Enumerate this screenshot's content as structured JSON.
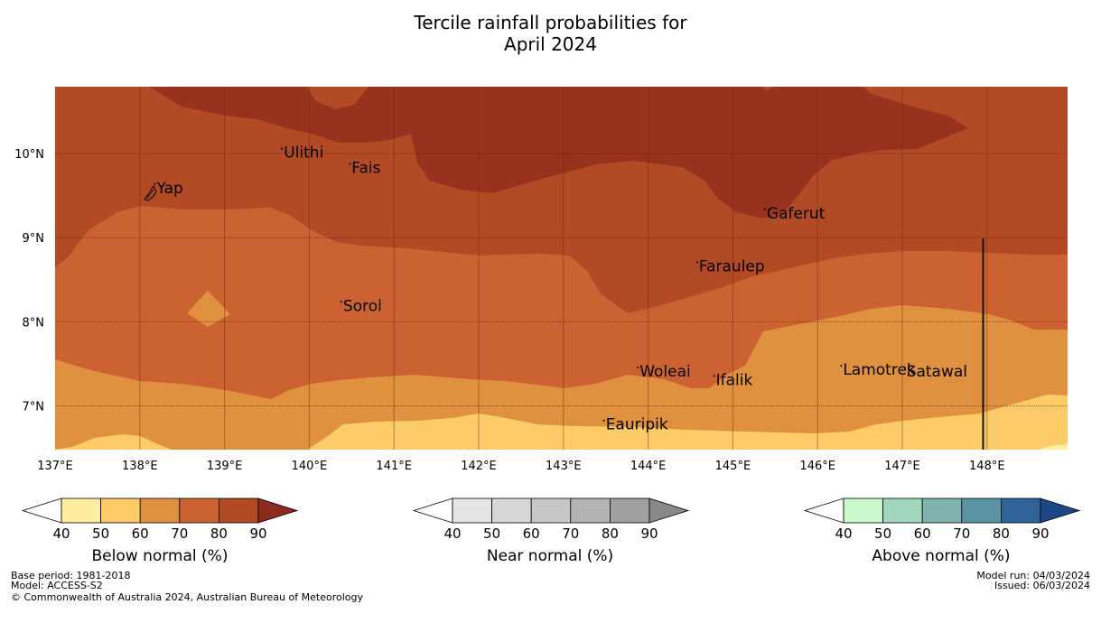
{
  "title": {
    "line1": "Tercile rainfall probabilities for",
    "line2": "April 2024"
  },
  "map": {
    "lon_labels": [
      "137°E",
      "138°E",
      "139°E",
      "140°E",
      "141°E",
      "142°E",
      "143°E",
      "144°E",
      "145°E",
      "146°E",
      "147°E",
      "148°E"
    ],
    "lat_labels": [
      "10°N",
      "9°N",
      "8°N",
      "7°N"
    ],
    "lon_range": [
      137,
      148.95
    ],
    "lat_range": [
      6.5,
      10.8
    ],
    "places": [
      {
        "name": "Ulithi",
        "lon": 139.7,
        "lat": 9.95
      },
      {
        "name": "Fais",
        "lon": 140.5,
        "lat": 9.77
      },
      {
        "name": "Yap",
        "lon": 138.2,
        "lat": 9.53
      },
      {
        "name": "Gaferut",
        "lon": 145.4,
        "lat": 9.23
      },
      {
        "name": "Faraulep",
        "lon": 144.6,
        "lat": 8.6
      },
      {
        "name": "Sorol",
        "lon": 140.4,
        "lat": 8.13
      },
      {
        "name": "Woleai",
        "lon": 143.9,
        "lat": 7.35
      },
      {
        "name": "Ifalik",
        "lon": 144.8,
        "lat": 7.25
      },
      {
        "name": "Lamotrek",
        "lon": 146.3,
        "lat": 7.37
      },
      {
        "name": "Satawal",
        "lon": 147.05,
        "lat": 7.35
      },
      {
        "name": "Eauripik",
        "lon": 143.5,
        "lat": 6.72
      }
    ]
  },
  "colorbars": [
    {
      "label": "Below normal (%)",
      "ticks": [
        "40",
        "50",
        "60",
        "70",
        "80",
        "90"
      ],
      "colors": [
        "#feec9f",
        "#fdcb68",
        "#e09140",
        "#cc6232",
        "#b24a26",
        "#8e2a1c"
      ]
    },
    {
      "label": "Near normal (%)",
      "ticks": [
        "40",
        "50",
        "60",
        "70",
        "80",
        "90"
      ],
      "colors": [
        "#e4e4e4",
        "#d7d7d7",
        "#c7c7c7",
        "#b4b4b4",
        "#a0a0a0",
        "#888888"
      ]
    },
    {
      "label": "Above normal (%)",
      "ticks": [
        "40",
        "50",
        "60",
        "70",
        "80",
        "90"
      ],
      "colors": [
        "#c8f8cc",
        "#a2d7bb",
        "#80b3ae",
        "#5a93a2",
        "#2f6296",
        "#1b4784"
      ]
    }
  ],
  "footer": {
    "base_period": "Base period: 1981-2018",
    "model": "Model: ACCESS-S2",
    "copyright": "© Commonwealth of Australia 2024, Australian Bureau of Meteorology",
    "model_run": "Model run: 04/03/2024",
    "issued": "Issued: 06/03/2024"
  }
}
